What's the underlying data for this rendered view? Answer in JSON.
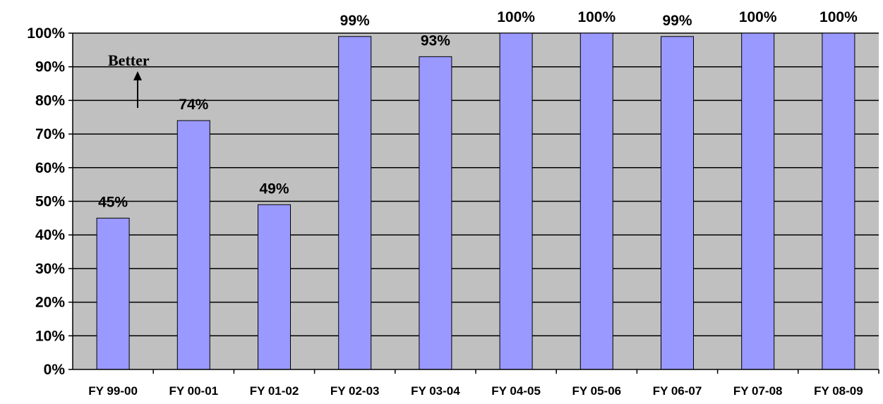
{
  "chart_data": {
    "type": "bar",
    "categories": [
      "FY 99-00",
      "FY 00-01",
      "FY 01-02",
      "FY 02-03",
      "FY 03-04",
      "FY 04-05",
      "FY 05-06",
      "FY 06-07",
      "FY 07-08",
      "FY 08-09"
    ],
    "values": [
      45,
      74,
      49,
      99,
      93,
      100,
      100,
      99,
      100,
      100
    ],
    "data_labels": [
      "45%",
      "74%",
      "49%",
      "99%",
      "93%",
      "100%",
      "100%",
      "99%",
      "100%",
      "100%"
    ],
    "y_ticks": [
      "0%",
      "10%",
      "20%",
      "30%",
      "40%",
      "50%",
      "60%",
      "70%",
      "80%",
      "90%",
      "100%"
    ],
    "ylim": [
      0,
      100
    ],
    "title": "",
    "xlabel": "",
    "ylabel": "",
    "grid": true,
    "annotation": "Better",
    "colors": {
      "bar": "#9999ff",
      "plot_background": "#c0c0c0",
      "gridline": "#000000"
    }
  }
}
